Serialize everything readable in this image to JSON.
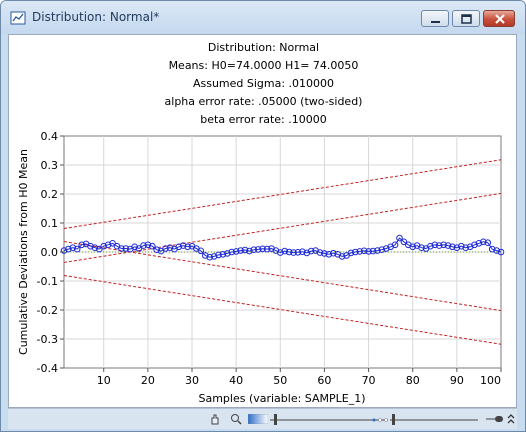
{
  "window": {
    "title": "Distribution: Normal*"
  },
  "header": {
    "distribution": "Distribution: Normal",
    "means": "Means: H0=74.0000   H1= 74.0050",
    "sigma": "Assumed Sigma: .010000",
    "alpha": "alpha error rate: .05000 (two-sided)",
    "beta": "beta error rate: .10000"
  },
  "chart_data": {
    "type": "line",
    "xlabel": "Samples (variable: SAMPLE_1)",
    "ylabel": "Cumulative Deviations from H0 Mean",
    "xlim": [
      1,
      100
    ],
    "ylim": [
      -0.4,
      0.4
    ],
    "x_ticks": [
      10,
      20,
      30,
      40,
      50,
      60,
      70,
      80,
      90,
      100
    ],
    "y_ticks": [
      "0.4",
      "0.3",
      "0.2",
      "0.1",
      "0.0",
      "-0.1",
      "-0.2",
      "-0.3",
      "-0.4"
    ],
    "grid": true,
    "series": [
      {
        "values": [
          0.005,
          0.01,
          0.015,
          0.01,
          0.025,
          0.028,
          0.02,
          0.015,
          0.01,
          0.02,
          0.025,
          0.03,
          0.02,
          0.012,
          0.012,
          0.01,
          0.018,
          0.012,
          0.022,
          0.025,
          0.02,
          0.008,
          0.003,
          0.012,
          0.015,
          0.01,
          0.018,
          0.022,
          0.018,
          0.02,
          0.012,
          0.004,
          -0.012,
          -0.018,
          -0.015,
          -0.01,
          -0.008,
          -0.005,
          0.0,
          0.002,
          0.005,
          0.007,
          0.003,
          0.008,
          0.009,
          0.011,
          0.01,
          0.012,
          0.005,
          -0.002,
          0.003,
          0.0,
          -0.002,
          -0.001,
          0.001,
          -0.003,
          0.003,
          0.005,
          -0.002,
          -0.005,
          -0.008,
          -0.004,
          -0.008,
          -0.015,
          -0.012,
          -0.003,
          0.0,
          0.002,
          0.004,
          0.002,
          0.003,
          0.005,
          0.008,
          0.012,
          0.018,
          0.025,
          0.048,
          0.035,
          0.025,
          0.018,
          0.022,
          0.015,
          0.012,
          0.02,
          0.025,
          0.022,
          0.025,
          0.022,
          0.018,
          0.015,
          0.02,
          0.015,
          0.018,
          0.025,
          0.03,
          0.035,
          0.032,
          0.01,
          0.005,
          0.0
        ],
        "color": "#1f2bd6"
      }
    ],
    "reference_lines": [
      {
        "y_start": 0.081,
        "y_end": 0.318,
        "color": "#c62020",
        "style": "dashed"
      },
      {
        "y_start": -0.036,
        "y_end": 0.202,
        "color": "#c62020",
        "style": "dashed"
      },
      {
        "y_start": 0.036,
        "y_end": -0.202,
        "color": "#c62020",
        "style": "dashed"
      },
      {
        "y_start": -0.081,
        "y_end": -0.318,
        "color": "#c62020",
        "style": "dashed"
      }
    ],
    "zero_line_color": "#6a9f2a"
  },
  "statusbar": {
    "icons": [
      "hand-icon",
      "zoom-icon",
      "color-scale-icon",
      "slider-icon",
      "slider-icon",
      "toggle-icon",
      "expand-icon"
    ]
  }
}
